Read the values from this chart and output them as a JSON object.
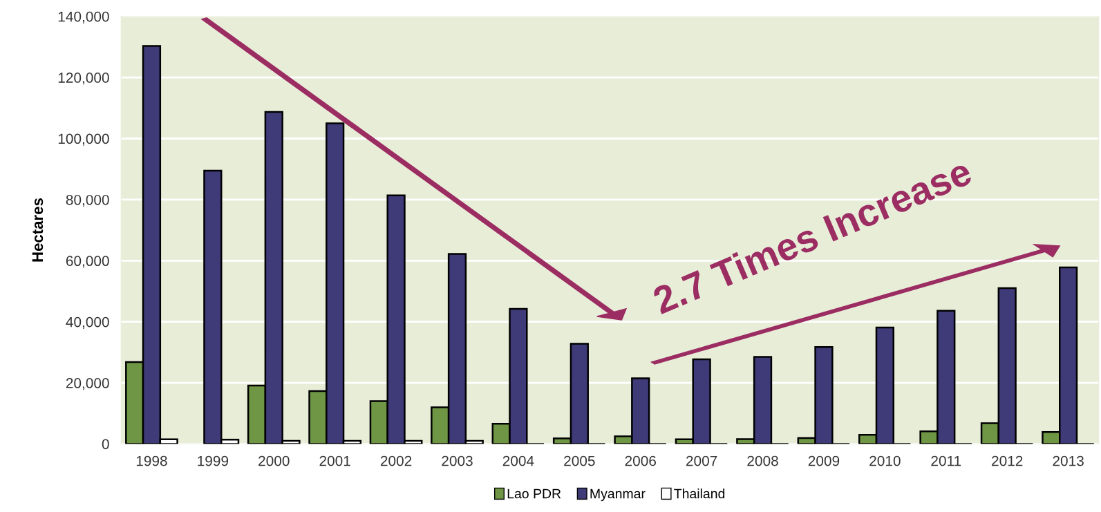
{
  "chart_data": {
    "type": "bar",
    "ylabel": "Hectares",
    "categories": [
      "1998",
      "1999",
      "2000",
      "2001",
      "2002",
      "2003",
      "2004",
      "2005",
      "2006",
      "2007",
      "2008",
      "2009",
      "2010",
      "2011",
      "2012",
      "2013"
    ],
    "series": [
      {
        "name": "Lao PDR",
        "color": "#6f9645",
        "values": [
          26800,
          null,
          19100,
          17300,
          14000,
          12000,
          6600,
          1800,
          2500,
          1500,
          1600,
          1900,
          3000,
          4100,
          6800,
          3900
        ]
      },
      {
        "name": "Myanmar",
        "color": "#3f3a78",
        "values": [
          130300,
          89500,
          108700,
          105000,
          81400,
          62200,
          44200,
          32800,
          21500,
          27700,
          28500,
          31700,
          38100,
          43600,
          51000,
          57800
        ]
      },
      {
        "name": "Thailand",
        "color": "#ffffff",
        "colors": [
          "#ffffff",
          "#ffffff",
          "#ffffff",
          "#ffffff",
          "#ffffff",
          "#ffffff",
          "#000000",
          "#000000",
          "#000000",
          "#000000",
          "#000000",
          "#000000",
          "#000000",
          "#000000",
          "#000000",
          "#000000"
        ],
        "values": [
          1500,
          1400,
          1000,
          1000,
          1000,
          1000,
          0,
          0,
          0,
          0,
          0,
          0,
          0,
          0,
          0,
          0
        ]
      }
    ],
    "ylim": [
      0,
      140000
    ],
    "yticks": [
      {
        "value": 0,
        "label": "0"
      },
      {
        "value": 20000,
        "label": "20,000"
      },
      {
        "value": 40000,
        "label": "40,000"
      },
      {
        "value": 60000,
        "label": "60,000"
      },
      {
        "value": 80000,
        "label": "80,000"
      },
      {
        "value": 100000,
        "label": "100,000"
      },
      {
        "value": 120000,
        "label": "120,000"
      },
      {
        "value": 140000,
        "label": "140,000"
      }
    ],
    "grid": "y",
    "legend": "bottom",
    "annotations": [
      "2.7 Times Increase"
    ]
  }
}
